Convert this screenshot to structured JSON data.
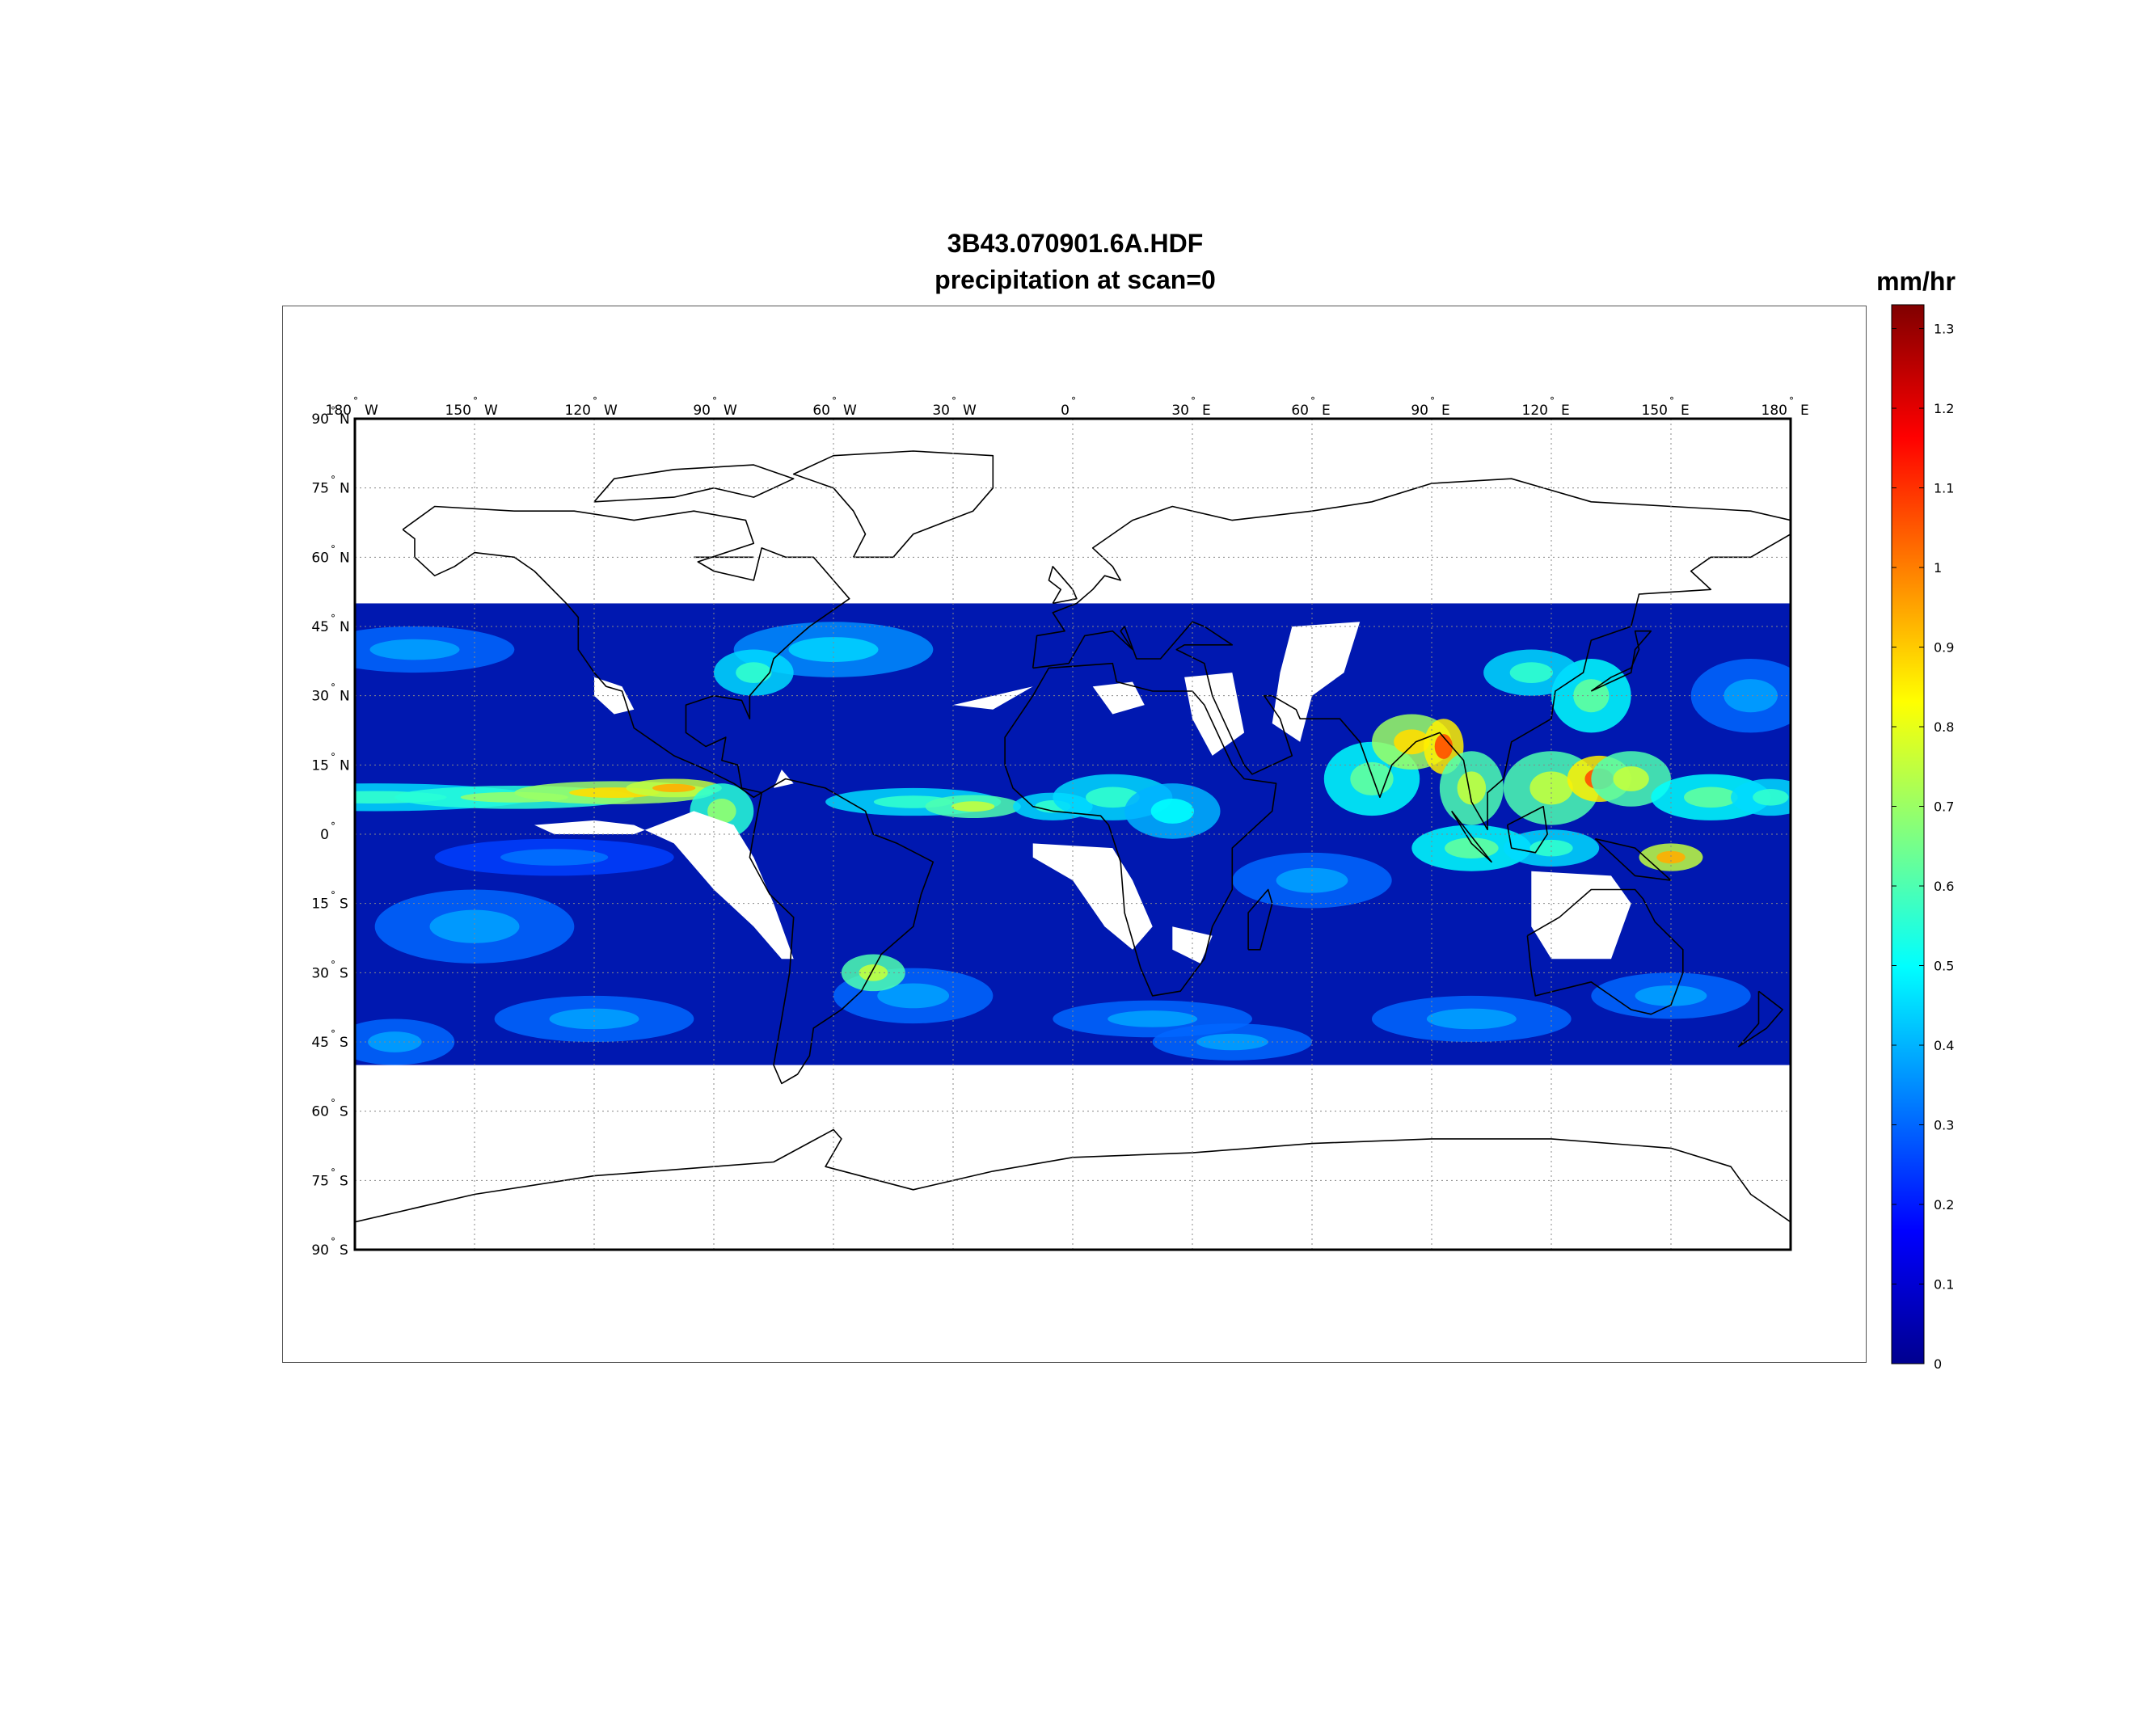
{
  "figure": {
    "title_line1": "3B43.070901.6A.HDF",
    "title_line2": "precipitation at scan=0"
  },
  "map": {
    "projection": "equirectangular",
    "lon_range": [
      -180,
      180
    ],
    "lat_range": [
      -90,
      90
    ],
    "data_lat_coverage": [
      -50,
      50
    ],
    "missing_data_color": "#ffffff",
    "coastline_color": "#000000",
    "grid": "dotted",
    "lon_ticks": [
      {
        "num": "180",
        "hemi": "W"
      },
      {
        "num": "150",
        "hemi": "W"
      },
      {
        "num": "120",
        "hemi": "W"
      },
      {
        "num": "90",
        "hemi": "W"
      },
      {
        "num": "60",
        "hemi": "W"
      },
      {
        "num": "30",
        "hemi": "W"
      },
      {
        "num": "0",
        "hemi": ""
      },
      {
        "num": "30",
        "hemi": "E"
      },
      {
        "num": "60",
        "hemi": "E"
      },
      {
        "num": "90",
        "hemi": "E"
      },
      {
        "num": "120",
        "hemi": "E"
      },
      {
        "num": "150",
        "hemi": "E"
      },
      {
        "num": "180",
        "hemi": "E"
      }
    ],
    "lat_ticks": [
      {
        "num": "90",
        "hemi": "N"
      },
      {
        "num": "75",
        "hemi": "N"
      },
      {
        "num": "60",
        "hemi": "N"
      },
      {
        "num": "45",
        "hemi": "N"
      },
      {
        "num": "30",
        "hemi": "N"
      },
      {
        "num": "15",
        "hemi": "N"
      },
      {
        "num": "0",
        "hemi": ""
      },
      {
        "num": "15",
        "hemi": "S"
      },
      {
        "num": "30",
        "hemi": "S"
      },
      {
        "num": "45",
        "hemi": "S"
      },
      {
        "num": "60",
        "hemi": "S"
      },
      {
        "num": "75",
        "hemi": "S"
      },
      {
        "num": "90",
        "hemi": "S"
      }
    ],
    "colormap": "jet",
    "colormap_stops": [
      "#00008f",
      "#0000ff",
      "#0080ff",
      "#00ffff",
      "#80ff80",
      "#ffff00",
      "#ff8000",
      "#ff0000",
      "#800000"
    ],
    "ocean_background_color": "#0018b0"
  },
  "colorbar": {
    "unit": "mm/hr",
    "min": 0,
    "max": 1.33,
    "tick_labels": [
      "0",
      "0.1",
      "0.2",
      "0.3",
      "0.4",
      "0.5",
      "0.6",
      "0.7",
      "0.8",
      "0.9",
      "1",
      "1.1",
      "1.2",
      "1.3"
    ]
  }
}
